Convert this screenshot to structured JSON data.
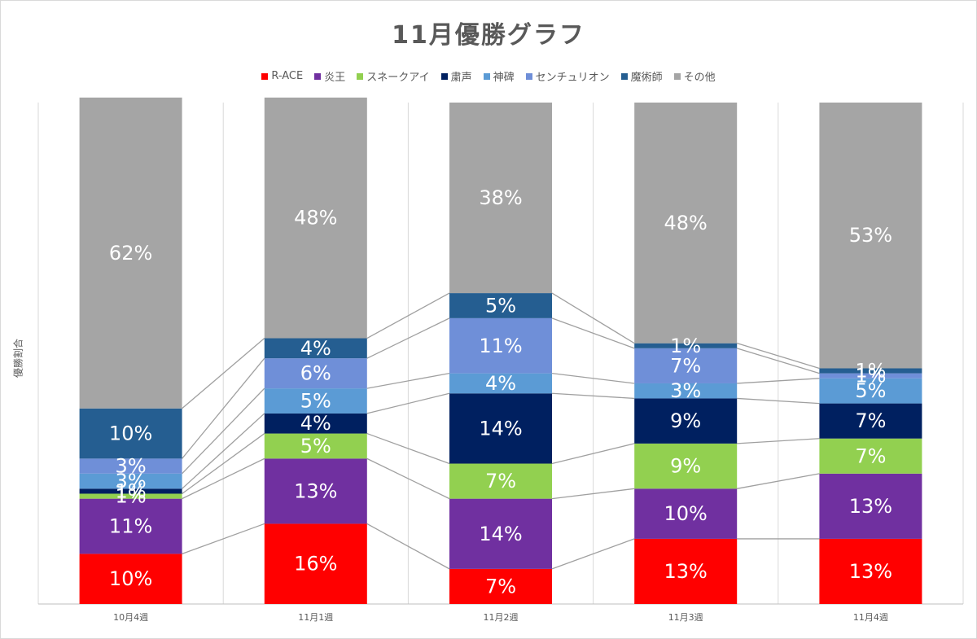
{
  "chart_data": {
    "type": "bar",
    "stacked": true,
    "title": "11月優勝グラフ",
    "ylabel": "優勝割合",
    "xlabel": "",
    "ylim": [
      0,
      100
    ],
    "legend_position": "top",
    "categories": [
      "10月4週",
      "11月1週",
      "11月2週",
      "11月3週",
      "11月4週"
    ],
    "series": [
      {
        "name": "R-ACE",
        "color": "#ff0000",
        "values": [
          10,
          16,
          7,
          13,
          13
        ],
        "labels": [
          "10%",
          "16%",
          "7%",
          "13%",
          "13%"
        ]
      },
      {
        "name": "炎王",
        "color": "#7030a0",
        "values": [
          11,
          13,
          14,
          10,
          13
        ],
        "labels": [
          "11%",
          "13%",
          "14%",
          "10%",
          "13%"
        ]
      },
      {
        "name": "スネークアイ",
        "color": "#92d050",
        "values": [
          1,
          5,
          7,
          9,
          7
        ],
        "labels": [
          "1%",
          "5%",
          "7%",
          "9%",
          "7%"
        ]
      },
      {
        "name": "粛声",
        "color": "#002060",
        "values": [
          1,
          4,
          14,
          9,
          7
        ],
        "labels": [
          "1%",
          "4%",
          "14%",
          "9%",
          "7%"
        ]
      },
      {
        "name": "神碑",
        "color": "#5b9bd5",
        "values": [
          3,
          5,
          4,
          3,
          5
        ],
        "labels": [
          "3%",
          "5%",
          "4%",
          "3%",
          "5%"
        ]
      },
      {
        "name": "センチュリオン",
        "color": "#6f8fd8",
        "values": [
          3,
          6,
          11,
          7,
          1
        ],
        "labels": [
          "3%",
          "6%",
          "11%",
          "7%",
          "1%"
        ]
      },
      {
        "name": "魔術師",
        "color": "#255e91",
        "values": [
          10,
          4,
          5,
          1,
          1
        ],
        "labels": [
          "10%",
          "4%",
          "5%",
          "1%",
          "1%"
        ]
      },
      {
        "name": "その他",
        "color": "#a5a5a5",
        "values": [
          62,
          48,
          38,
          48,
          53
        ],
        "labels": [
          "62%",
          "48%",
          "38%",
          "48%",
          "53%"
        ]
      }
    ]
  }
}
